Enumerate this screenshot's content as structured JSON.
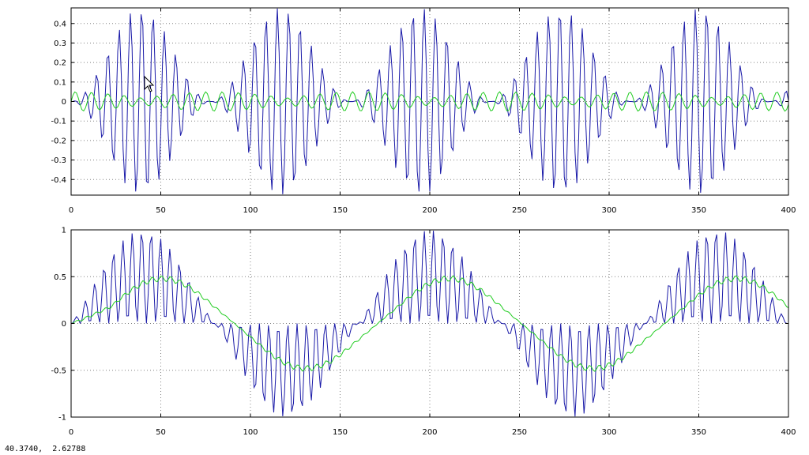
{
  "status": {
    "coordinates": "40.3740,  2.62788"
  },
  "colors": {
    "series1": "#1a1aa8",
    "series2": "#22cc22",
    "grid": "#808080",
    "axis": "#000000"
  },
  "icons": {
    "cursor": "mouse-pointer-icon"
  },
  "chart_data": [
    {
      "type": "line",
      "title": "",
      "xlabel": "",
      "ylabel": "",
      "xlim": [
        0,
        400
      ],
      "ylim": [
        -0.48,
        0.48
      ],
      "xticks": [
        0,
        50,
        100,
        150,
        200,
        250,
        300,
        350,
        400
      ],
      "xtick_labels": [
        "0",
        "50",
        "100",
        "150",
        "200",
        "250",
        "300",
        "350",
        "400"
      ],
      "yticks": [
        0.4,
        0.3,
        0.2,
        0.1,
        0,
        -0.1,
        -0.2,
        -0.3,
        -0.4
      ],
      "ytick_labels": [
        "0.4",
        "0.3",
        "0.2",
        "0.1",
        "0",
        "-0.1",
        "-0.2",
        "-0.3",
        "-0.4"
      ],
      "grid": true,
      "legend": "none",
      "series": [
        {
          "color": "#1a1aa8",
          "description": "amplitude-modulated oscillation, envelope period ~78, peak ~0.48, carrier period ~6.3",
          "n_points": 401
        },
        {
          "color": "#22cc22",
          "description": "small oscillation, amplitude ~0.05, carrier period ~9, envelope minima near x=80,160,240,320",
          "n_points": 401
        }
      ]
    },
    {
      "type": "line",
      "title": "",
      "xlabel": "",
      "ylabel": "",
      "xlim": [
        0,
        400
      ],
      "ylim": [
        -1,
        1
      ],
      "xticks": [
        0,
        50,
        100,
        150,
        200,
        250,
        300,
        350,
        400
      ],
      "xtick_labels": [
        "0",
        "50",
        "100",
        "150",
        "200",
        "250",
        "300",
        "350",
        "400"
      ],
      "yticks": [
        1,
        0.5,
        0,
        -0.5,
        -1
      ],
      "ytick_labels": [
        "1",
        "0.5",
        "0",
        "-0.5",
        "-1"
      ],
      "grid": true,
      "legend": "none",
      "series": [
        {
          "color": "#1a1aa8",
          "description": "rectified oscillation alternating sign with square-wave period ~160, peak ~1.0",
          "n_points": 401
        },
        {
          "color": "#22cc22",
          "description": "smoothed signal, triangular-like wave, amplitude ~0.45, period ~160",
          "n_points": 401
        }
      ]
    }
  ]
}
